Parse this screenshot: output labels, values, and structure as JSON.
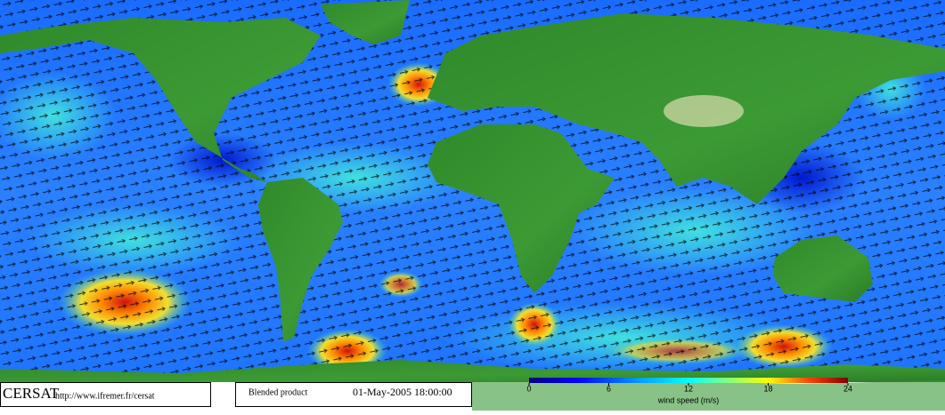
{
  "logo": "CERSAT",
  "url": "http://www.ifremer.fr/cersat",
  "product": "Blended product",
  "timestamp": "01-May-2005 18:00:00",
  "colorbar": {
    "label": "wind speed (m/s)",
    "lim": [
      0,
      24
    ],
    "ticks": [
      0,
      6,
      12,
      18,
      24
    ]
  }
}
